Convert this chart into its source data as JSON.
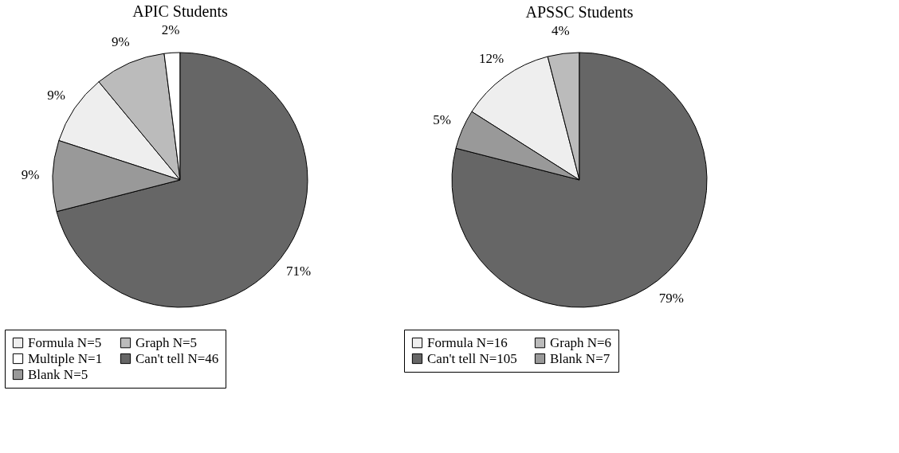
{
  "chart_data": [
    {
      "type": "pie",
      "title": "APIC Students",
      "categories": [
        "Formula N=5",
        "Graph N=5",
        "Multiple N=1",
        "Can't tell N=46",
        "Blank N=5"
      ],
      "values": [
        9,
        9,
        2,
        71,
        9
      ],
      "value_labels": [
        "9%",
        "9%",
        "2%",
        "71%",
        "9%"
      ],
      "colors": [
        "#eeeeee",
        "#bbbbbb",
        "#ffffff",
        "#666666",
        "#999999"
      ],
      "legend": "bottom"
    },
    {
      "type": "pie",
      "title": "APSSC Students",
      "categories": [
        "Formula N=16",
        "Graph N=6",
        "Can't tell N=105",
        "Blank N=7"
      ],
      "values": [
        12,
        4,
        79,
        5
      ],
      "value_labels": [
        "12%",
        "4%",
        "79%",
        "5%"
      ],
      "colors": [
        "#eeeeee",
        "#bbbbbb",
        "#666666",
        "#999999"
      ],
      "legend": "bottom"
    }
  ]
}
